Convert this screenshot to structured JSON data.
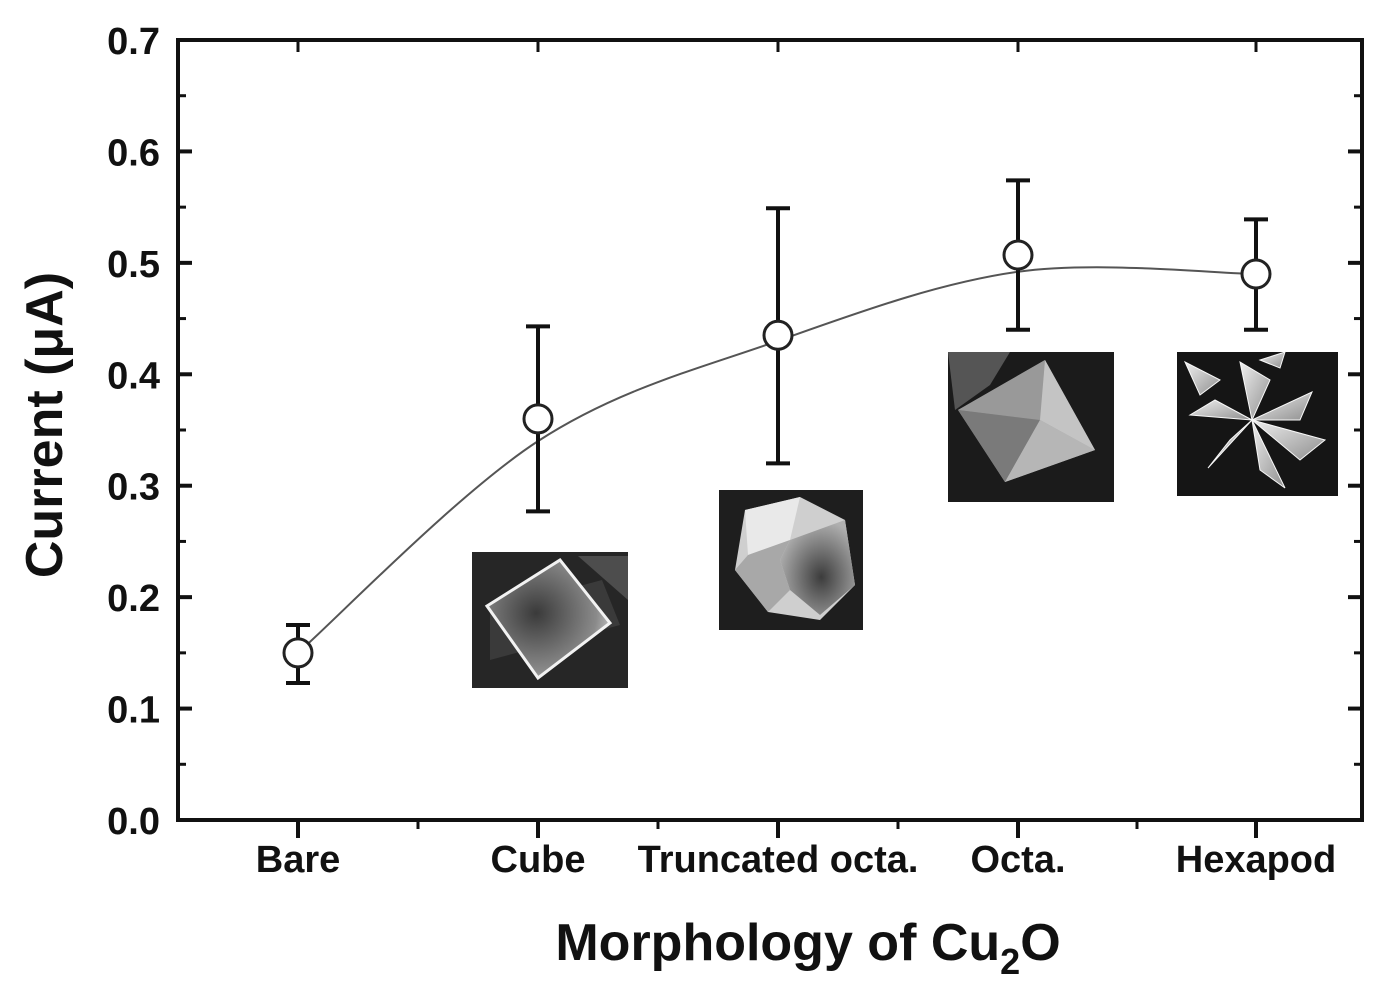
{
  "chart_data": {
    "type": "scatter",
    "title": "",
    "xlabel": "Morphology of Cu",
    "xlabel_subscript": "2",
    "xlabel_suffix": "O",
    "ylabel": "Current (μA)",
    "categories": [
      "Bare",
      "Cube",
      "Truncated octa.",
      "Octa.",
      "Hexapod"
    ],
    "values": [
      0.15,
      0.36,
      0.435,
      0.507,
      0.49
    ],
    "error_low": [
      0.123,
      0.277,
      0.32,
      0.44,
      0.44
    ],
    "error_high": [
      0.175,
      0.443,
      0.549,
      0.574,
      0.539
    ],
    "ylim": [
      0.0,
      0.7
    ],
    "yticks": [
      "0.0",
      "0.1",
      "0.2",
      "0.3",
      "0.4",
      "0.5",
      "0.6",
      "0.7"
    ],
    "trend_line": [
      0.15,
      0.34,
      0.43,
      0.492,
      0.49
    ],
    "grid": false,
    "legend": "none",
    "marker": "open-circle",
    "insets": [
      {
        "category": "Cube",
        "shape": "cube-crystal-micrograph"
      },
      {
        "category": "Truncated octa.",
        "shape": "truncated-octahedron-micrograph"
      },
      {
        "category": "Octa.",
        "shape": "octahedron-micrograph"
      },
      {
        "category": "Hexapod",
        "shape": "hexapod-micrograph"
      }
    ]
  }
}
